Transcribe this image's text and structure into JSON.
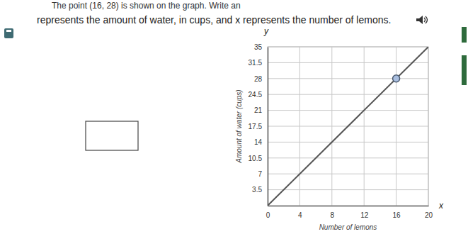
{
  "chart_data": {
    "type": "line",
    "title": "The point (16, 28) is shown on the graph. Write an",
    "subtitle": "represents the amount of water, in cups, and x represents the number of lemons.",
    "x_label": "Number of lemons",
    "y_label": "Amount of water (cups)",
    "annotations": [
      {
        "text": "x"
      },
      {
        "text": "y"
      }
    ],
    "series": [
      {
        "type": "line",
        "x": [
          0,
          20
        ],
        "values": [
          0,
          35
        ],
        "color": "#555555",
        "line_style": "solid"
      },
      {
        "type": "scatter",
        "x": [
          16
        ],
        "values": [
          28
        ],
        "color": "#a9bedf",
        "marker": "circle"
      }
    ],
    "xlim": [
      0,
      20
    ],
    "ylim": [
      0,
      35
    ],
    "xticks": [
      0,
      4,
      8,
      12,
      16,
      20
    ],
    "yticks": [
      3.5,
      7,
      10.5,
      14,
      17.5,
      21,
      24.5,
      28,
      31.5,
      35
    ],
    "grid": true
  }
}
